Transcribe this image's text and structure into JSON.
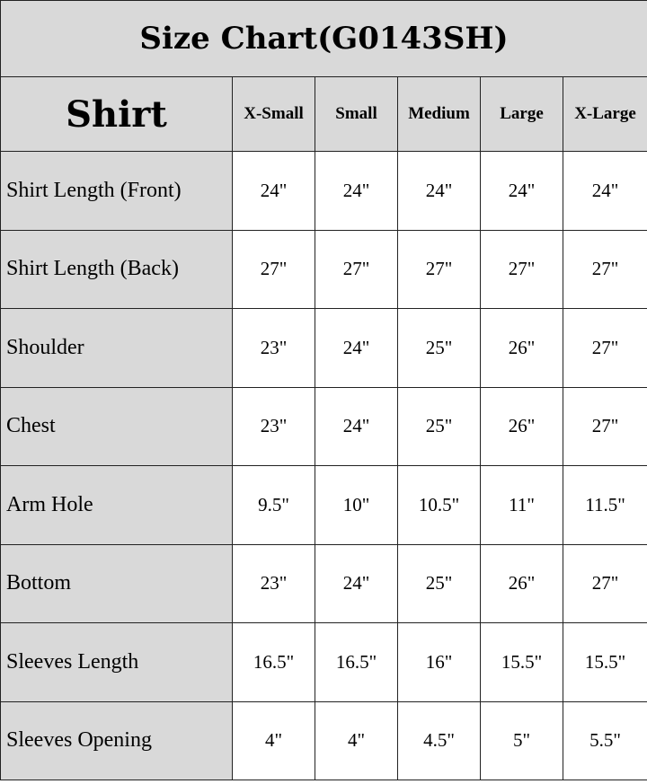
{
  "title": "Size Chart(G0143SH)",
  "header": {
    "label": "Shirt",
    "sizes": [
      "X-Small",
      "Small",
      "Medium",
      "Large",
      "X-Large"
    ]
  },
  "rows": [
    {
      "label": "Shirt Length (Front)",
      "values": [
        "24\"",
        "24\"",
        "24\"",
        "24\"",
        "24\""
      ]
    },
    {
      "label": "Shirt Length (Back)",
      "values": [
        "27\"",
        "27\"",
        "27\"",
        "27\"",
        "27\""
      ]
    },
    {
      "label": "Shoulder",
      "values": [
        "23\"",
        "24\"",
        "25\"",
        "26\"",
        "27\""
      ]
    },
    {
      "label": "Chest",
      "values": [
        "23\"",
        "24\"",
        "25\"",
        "26\"",
        "27\""
      ]
    },
    {
      "label": "Arm Hole",
      "values": [
        "9.5\"",
        "10\"",
        "10.5\"",
        "11\"",
        "11.5\""
      ]
    },
    {
      "label": "Bottom",
      "values": [
        "23\"",
        "24\"",
        "25\"",
        "26\"",
        "27\""
      ]
    },
    {
      "label": "Sleeves Length",
      "values": [
        "16.5\"",
        "16.5\"",
        "16\"",
        "15.5\"",
        "15.5\""
      ]
    },
    {
      "label": "Sleeves Opening",
      "values": [
        "4\"",
        "4\"",
        "4.5\"",
        "5\"",
        "5.5\""
      ]
    }
  ]
}
